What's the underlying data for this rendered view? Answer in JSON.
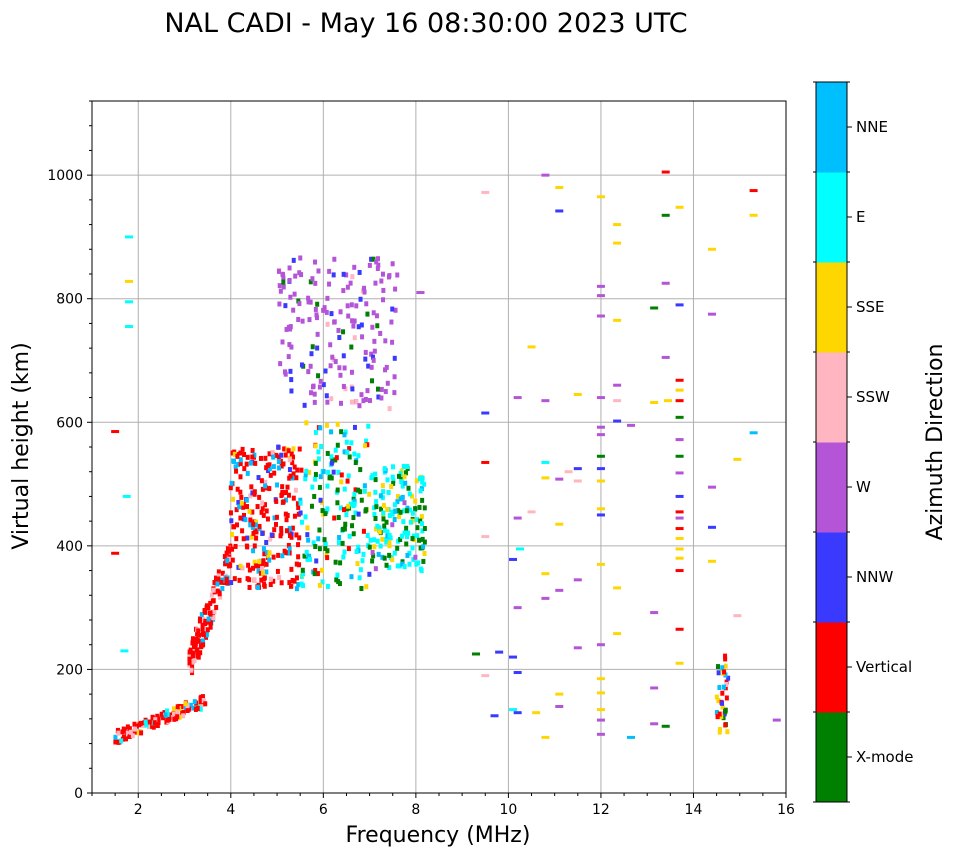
{
  "chart_data": {
    "type": "scatter",
    "title": "NAL CADI - May 16 08:30:00 2023 UTC",
    "xlabel": "Frequency (MHz)",
    "ylabel": "Virtual height (km)",
    "xlim": [
      1,
      16
    ],
    "ylim": [
      0,
      1120
    ],
    "xticks": [
      2,
      4,
      6,
      8,
      10,
      12,
      14,
      16
    ],
    "yticks": [
      0,
      200,
      400,
      600,
      800,
      1000
    ],
    "grid": true,
    "colorbar": {
      "label": "Azimuth Direction",
      "categories": [
        {
          "name": "X-mode",
          "color": "#008000"
        },
        {
          "name": "Vertical",
          "color": "#ff0000"
        },
        {
          "name": "NNW",
          "color": "#3a3aff"
        },
        {
          "name": "W",
          "color": "#b455d8"
        },
        {
          "name": "SSW",
          "color": "#ffb6c1"
        },
        {
          "name": "SSE",
          "color": "#ffd700"
        },
        {
          "name": "E",
          "color": "#00ffff"
        },
        {
          "name": "NNE",
          "color": "#00bfff"
        }
      ]
    },
    "trace_regions": [
      {
        "f": [
          1.5,
          3.5
        ],
        "h": [
          90,
          150
        ],
        "n": 120,
        "mix": {
          "Vertical": 0.6,
          "SSW": 0.15,
          "E": 0.1,
          "NNE": 0.1,
          "SSE": 0.05
        },
        "slope": 0.8
      },
      {
        "f": [
          3.1,
          4.0
        ],
        "h": [
          210,
          380
        ],
        "n": 140,
        "mix": {
          "Vertical": 0.75,
          "NNE": 0.15,
          "SSW": 0.1
        },
        "slope": 1
      },
      {
        "f": [
          4.0,
          5.5
        ],
        "h": [
          330,
          560
        ],
        "n": 260,
        "mix": {
          "Vertical": 0.65,
          "NNE": 0.15,
          "NNW": 0.08,
          "SSE": 0.07,
          "SSW": 0.05
        },
        "slope": 0
      },
      {
        "f": [
          5.5,
          7.0
        ],
        "h": [
          330,
          600
        ],
        "n": 180,
        "mix": {
          "E": 0.35,
          "X-mode": 0.3,
          "NNE": 0.1,
          "Vertical": 0.1,
          "SSE": 0.1,
          "NNW": 0.05
        },
        "slope": 0
      },
      {
        "f": [
          7.0,
          8.2
        ],
        "h": [
          360,
          530
        ],
        "n": 170,
        "mix": {
          "E": 0.45,
          "SSE": 0.2,
          "X-mode": 0.2,
          "NNE": 0.1,
          "W": 0.05
        },
        "slope": 0
      },
      {
        "f": [
          5.0,
          7.6
        ],
        "h": [
          620,
          870
        ],
        "n": 190,
        "mix": {
          "W": 0.75,
          "NNW": 0.15,
          "X-mode": 0.05,
          "SSW": 0.05
        },
        "slope": 0
      },
      {
        "f": [
          14.5,
          14.75
        ],
        "h": [
          95,
          225
        ],
        "n": 40,
        "mix": {
          "Vertical": 0.3,
          "SSE": 0.25,
          "X-mode": 0.15,
          "SSW": 0.15,
          "NNE": 0.1,
          "NNW": 0.05
        },
        "slope": 0
      }
    ],
    "isolated_echoes": [
      {
        "f": 1.5,
        "h": 585,
        "c": "Vertical"
      },
      {
        "f": 1.5,
        "h": 388,
        "c": "Vertical"
      },
      {
        "f": 1.8,
        "h": 900,
        "c": "E"
      },
      {
        "f": 1.8,
        "h": 828,
        "c": "SSE"
      },
      {
        "f": 1.8,
        "h": 795,
        "c": "E"
      },
      {
        "f": 1.8,
        "h": 755,
        "c": "E"
      },
      {
        "f": 1.7,
        "h": 230,
        "c": "E"
      },
      {
        "f": 1.75,
        "h": 480,
        "c": "E"
      },
      {
        "f": 8.1,
        "h": 810,
        "c": "W"
      },
      {
        "f": 9.3,
        "h": 225,
        "c": "X-mode"
      },
      {
        "f": 9.5,
        "h": 972,
        "c": "SSW"
      },
      {
        "f": 9.5,
        "h": 615,
        "c": "NNW"
      },
      {
        "f": 9.5,
        "h": 535,
        "c": "Vertical"
      },
      {
        "f": 9.5,
        "h": 415,
        "c": "SSW"
      },
      {
        "f": 9.5,
        "h": 190,
        "c": "SSW"
      },
      {
        "f": 9.7,
        "h": 125,
        "c": "NNW"
      },
      {
        "f": 9.8,
        "h": 228,
        "c": "NNW"
      },
      {
        "f": 10.1,
        "h": 378,
        "c": "NNW"
      },
      {
        "f": 10.1,
        "h": 220,
        "c": "NNW"
      },
      {
        "f": 10.2,
        "h": 640,
        "c": "W"
      },
      {
        "f": 10.2,
        "h": 445,
        "c": "W"
      },
      {
        "f": 10.25,
        "h": 395,
        "c": "E"
      },
      {
        "f": 10.2,
        "h": 300,
        "c": "W"
      },
      {
        "f": 10.2,
        "h": 195,
        "c": "NNW"
      },
      {
        "f": 10.1,
        "h": 135,
        "c": "E"
      },
      {
        "f": 10.2,
        "h": 130,
        "c": "NNW"
      },
      {
        "f": 10.5,
        "h": 722,
        "c": "SSE"
      },
      {
        "f": 10.5,
        "h": 455,
        "c": "SSW"
      },
      {
        "f": 10.6,
        "h": 130,
        "c": "SSE"
      },
      {
        "f": 10.8,
        "h": 1000,
        "c": "W"
      },
      {
        "f": 10.8,
        "h": 635,
        "c": "W"
      },
      {
        "f": 10.8,
        "h": 535,
        "c": "E"
      },
      {
        "f": 10.8,
        "h": 510,
        "c": "SSE"
      },
      {
        "f": 10.8,
        "h": 355,
        "c": "SSE"
      },
      {
        "f": 10.8,
        "h": 315,
        "c": "W"
      },
      {
        "f": 10.8,
        "h": 90,
        "c": "SSE"
      },
      {
        "f": 11.1,
        "h": 980,
        "c": "SSE"
      },
      {
        "f": 11.1,
        "h": 942,
        "c": "NNW"
      },
      {
        "f": 11.1,
        "h": 508,
        "c": "W"
      },
      {
        "f": 11.1,
        "h": 435,
        "c": "SSE"
      },
      {
        "f": 11.1,
        "h": 328,
        "c": "W"
      },
      {
        "f": 11.1,
        "h": 160,
        "c": "SSE"
      },
      {
        "f": 11.1,
        "h": 140,
        "c": "W"
      },
      {
        "f": 11.3,
        "h": 520,
        "c": "SSW"
      },
      {
        "f": 11.5,
        "h": 645,
        "c": "SSE"
      },
      {
        "f": 11.5,
        "h": 525,
        "c": "NNW"
      },
      {
        "f": 11.5,
        "h": 505,
        "c": "SSW"
      },
      {
        "f": 11.5,
        "h": 345,
        "c": "W"
      },
      {
        "f": 11.5,
        "h": 235,
        "c": "W"
      },
      {
        "f": 12.0,
        "h": 965,
        "c": "SSE"
      },
      {
        "f": 12.0,
        "h": 820,
        "c": "W"
      },
      {
        "f": 12.0,
        "h": 805,
        "c": "W"
      },
      {
        "f": 12.0,
        "h": 772,
        "c": "W"
      },
      {
        "f": 12.0,
        "h": 640,
        "c": "W"
      },
      {
        "f": 12.0,
        "h": 592,
        "c": "W"
      },
      {
        "f": 12.0,
        "h": 580,
        "c": "W"
      },
      {
        "f": 12.0,
        "h": 545,
        "c": "X-mode"
      },
      {
        "f": 12.0,
        "h": 525,
        "c": "NNW"
      },
      {
        "f": 12.0,
        "h": 505,
        "c": "SSE"
      },
      {
        "f": 12.0,
        "h": 460,
        "c": "SSE"
      },
      {
        "f": 12.0,
        "h": 450,
        "c": "NNW"
      },
      {
        "f": 12.0,
        "h": 370,
        "c": "SSE"
      },
      {
        "f": 12.0,
        "h": 240,
        "c": "W"
      },
      {
        "f": 12.0,
        "h": 185,
        "c": "SSE"
      },
      {
        "f": 12.0,
        "h": 162,
        "c": "SSE"
      },
      {
        "f": 12.0,
        "h": 135,
        "c": "SSE"
      },
      {
        "f": 12.0,
        "h": 118,
        "c": "W"
      },
      {
        "f": 12.0,
        "h": 95,
        "c": "W"
      },
      {
        "f": 12.35,
        "h": 920,
        "c": "SSE"
      },
      {
        "f": 12.35,
        "h": 890,
        "c": "SSE"
      },
      {
        "f": 12.35,
        "h": 765,
        "c": "SSE"
      },
      {
        "f": 12.35,
        "h": 660,
        "c": "W"
      },
      {
        "f": 12.35,
        "h": 635,
        "c": "SSW"
      },
      {
        "f": 12.35,
        "h": 602,
        "c": "NNW"
      },
      {
        "f": 12.65,
        "h": 595,
        "c": "W"
      },
      {
        "f": 12.35,
        "h": 332,
        "c": "SSE"
      },
      {
        "f": 12.35,
        "h": 258,
        "c": "SSE"
      },
      {
        "f": 12.65,
        "h": 90,
        "c": "NNE"
      },
      {
        "f": 13.15,
        "h": 785,
        "c": "X-mode"
      },
      {
        "f": 13.15,
        "h": 632,
        "c": "SSE"
      },
      {
        "f": 13.15,
        "h": 292,
        "c": "W"
      },
      {
        "f": 13.15,
        "h": 170,
        "c": "W"
      },
      {
        "f": 13.15,
        "h": 112,
        "c": "W"
      },
      {
        "f": 13.4,
        "h": 1005,
        "c": "Vertical"
      },
      {
        "f": 13.4,
        "h": 935,
        "c": "X-mode"
      },
      {
        "f": 13.4,
        "h": 825,
        "c": "W"
      },
      {
        "f": 13.4,
        "h": 705,
        "c": "W"
      },
      {
        "f": 13.45,
        "h": 635,
        "c": "SSE"
      },
      {
        "f": 13.4,
        "h": 108,
        "c": "X-mode"
      },
      {
        "f": 13.7,
        "h": 948,
        "c": "SSE"
      },
      {
        "f": 13.7,
        "h": 790,
        "c": "NNW"
      },
      {
        "f": 13.7,
        "h": 668,
        "c": "Vertical"
      },
      {
        "f": 13.7,
        "h": 652,
        "c": "SSE"
      },
      {
        "f": 13.7,
        "h": 635,
        "c": "Vertical"
      },
      {
        "f": 13.7,
        "h": 608,
        "c": "X-mode"
      },
      {
        "f": 13.7,
        "h": 572,
        "c": "W"
      },
      {
        "f": 13.7,
        "h": 545,
        "c": "X-mode"
      },
      {
        "f": 13.7,
        "h": 518,
        "c": "W"
      },
      {
        "f": 13.7,
        "h": 480,
        "c": "NNW"
      },
      {
        "f": 13.7,
        "h": 455,
        "c": "Vertical"
      },
      {
        "f": 13.7,
        "h": 445,
        "c": "W"
      },
      {
        "f": 13.7,
        "h": 428,
        "c": "Vertical"
      },
      {
        "f": 13.7,
        "h": 412,
        "c": "SSE"
      },
      {
        "f": 13.7,
        "h": 395,
        "c": "SSE"
      },
      {
        "f": 13.7,
        "h": 380,
        "c": "SSE"
      },
      {
        "f": 13.7,
        "h": 360,
        "c": "Vertical"
      },
      {
        "f": 13.7,
        "h": 265,
        "c": "Vertical"
      },
      {
        "f": 13.7,
        "h": 210,
        "c": "SSE"
      },
      {
        "f": 14.4,
        "h": 880,
        "c": "SSE"
      },
      {
        "f": 14.4,
        "h": 775,
        "c": "W"
      },
      {
        "f": 14.4,
        "h": 495,
        "c": "W"
      },
      {
        "f": 14.4,
        "h": 430,
        "c": "NNW"
      },
      {
        "f": 14.4,
        "h": 375,
        "c": "SSE"
      },
      {
        "f": 14.95,
        "h": 540,
        "c": "SSE"
      },
      {
        "f": 14.95,
        "h": 287,
        "c": "SSW"
      },
      {
        "f": 15.3,
        "h": 975,
        "c": "Vertical"
      },
      {
        "f": 15.3,
        "h": 935,
        "c": "SSE"
      },
      {
        "f": 15.3,
        "h": 583,
        "c": "NNE"
      },
      {
        "f": 15.8,
        "h": 118,
        "c": "W"
      }
    ]
  }
}
